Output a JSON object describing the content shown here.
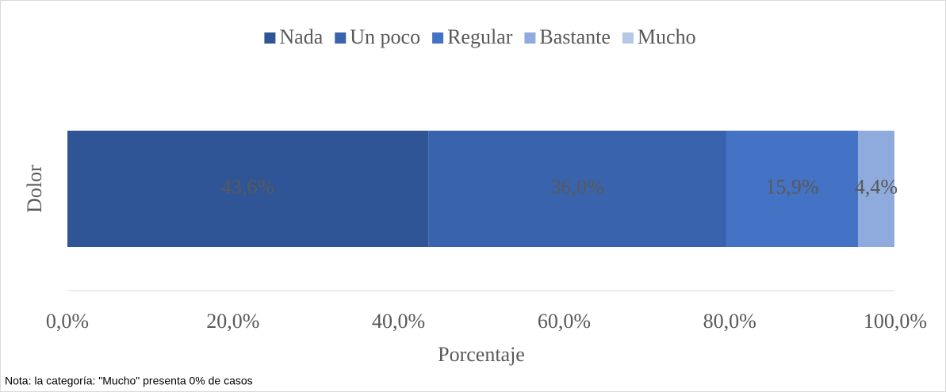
{
  "chart_data": {
    "type": "bar",
    "orientation": "horizontal",
    "stacked": true,
    "categories": [
      "Dolor"
    ],
    "series": [
      {
        "name": "Nada",
        "color": "#2f5597",
        "values": [
          43.6
        ],
        "value_labels": [
          "43,6%"
        ]
      },
      {
        "name": "Un poco",
        "color": "#3a63ae",
        "values": [
          36.0
        ],
        "value_labels": [
          "36,0%"
        ]
      },
      {
        "name": "Regular",
        "color": "#4472c4",
        "values": [
          15.9
        ],
        "value_labels": [
          "15,9%"
        ]
      },
      {
        "name": "Bastante",
        "color": "#8faadc",
        "values": [
          4.4
        ],
        "value_labels": [
          "4,4%"
        ]
      },
      {
        "name": "Mucho",
        "color": "#b4c7e7",
        "values": [
          0
        ]
      }
    ],
    "xlim": [
      0,
      100
    ],
    "xticks": [
      {
        "value": 0,
        "label": "0,0%"
      },
      {
        "value": 20,
        "label": "20,0%"
      },
      {
        "value": 40,
        "label": "40,0%"
      },
      {
        "value": 60,
        "label": "60,0%"
      },
      {
        "value": 80,
        "label": "80,0%"
      },
      {
        "value": 100,
        "label": "100,0%"
      }
    ],
    "xlabel": "Porcentaje",
    "legend": "top",
    "note": "Nota: la categoría: \"Mucho\" presenta 0% de casos"
  }
}
